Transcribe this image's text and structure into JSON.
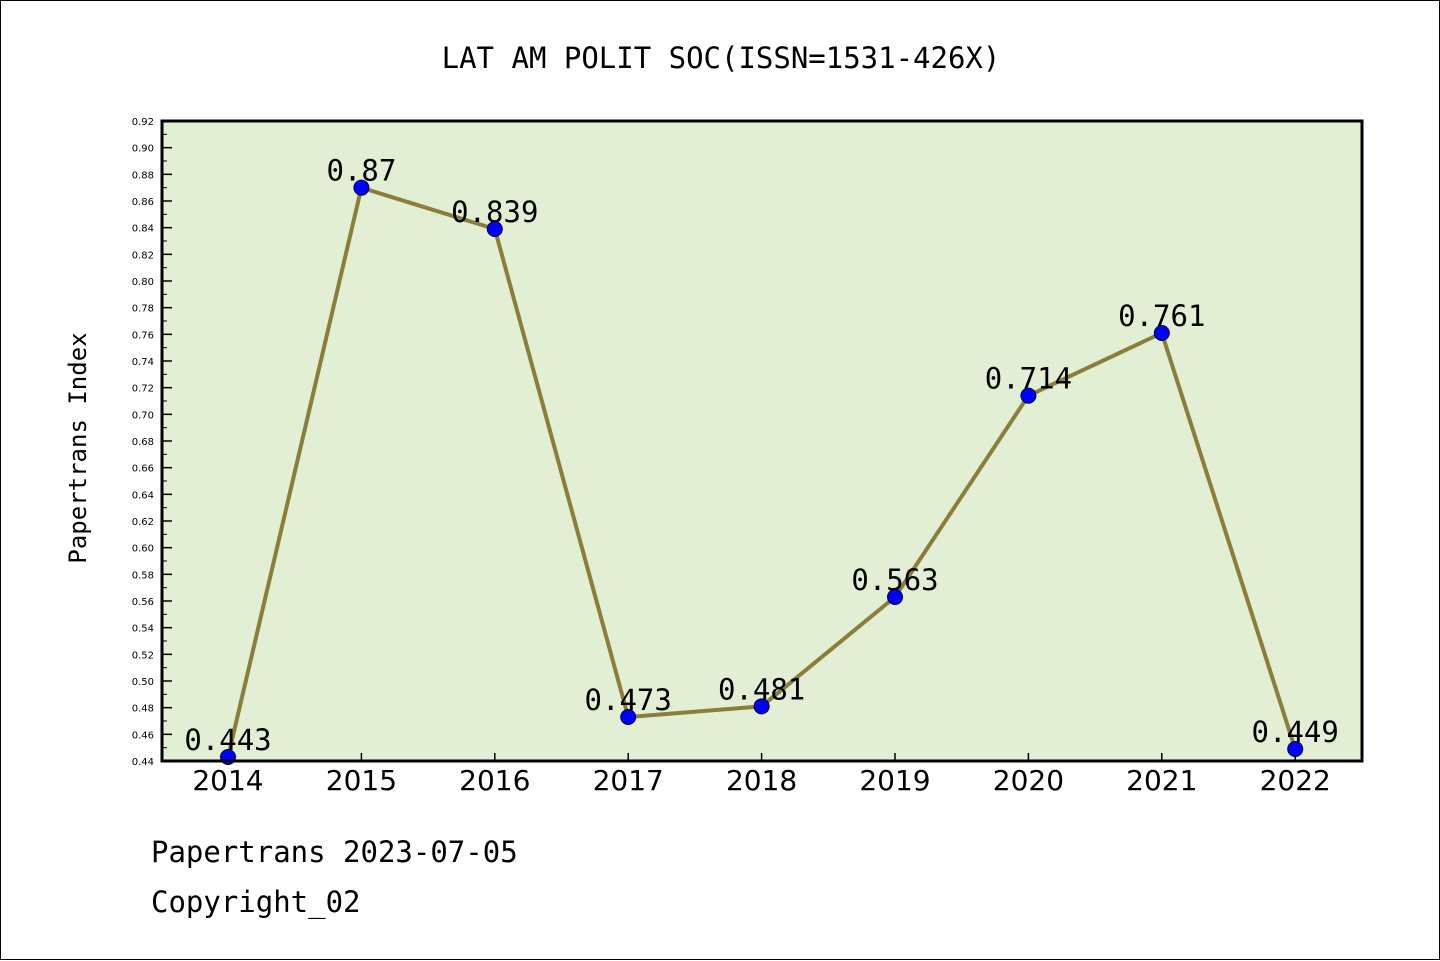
{
  "chart_data": {
    "type": "line",
    "title": "LAT AM POLIT SOC(ISSN=1531-426X)",
    "xlabel": "",
    "ylabel": "Papertrans Index",
    "categories": [
      "2014",
      "2015",
      "2016",
      "2017",
      "2018",
      "2019",
      "2020",
      "2021",
      "2022"
    ],
    "series": [
      {
        "values": [
          0.443,
          0.87,
          0.839,
          0.473,
          0.481,
          0.563,
          0.714,
          0.761,
          0.449
        ],
        "labels": [
          "0.443",
          "0.87",
          "0.839",
          "0.473",
          "0.481",
          "0.563",
          "0.714",
          "0.761",
          "0.449"
        ]
      }
    ],
    "ylim": [
      0.44,
      0.92
    ],
    "ytick_step": 0.02,
    "yticks": [
      "0.44",
      "0.46",
      "0.48",
      "0.50",
      "0.52",
      "0.54",
      "0.56",
      "0.58",
      "0.60",
      "0.62",
      "0.64",
      "0.66",
      "0.68",
      "0.70",
      "0.72",
      "0.74",
      "0.76",
      "0.78",
      "0.80",
      "0.82",
      "0.84",
      "0.86",
      "0.88",
      "0.90",
      "0.92"
    ],
    "grid": false,
    "legend": "none",
    "colors": {
      "plot_background": "#e2efd5",
      "line": "#8b7d3a",
      "marker": "#0000ff"
    }
  },
  "footer": {
    "line1": "Papertrans 2023-07-05",
    "line2": "Copyright_02"
  }
}
